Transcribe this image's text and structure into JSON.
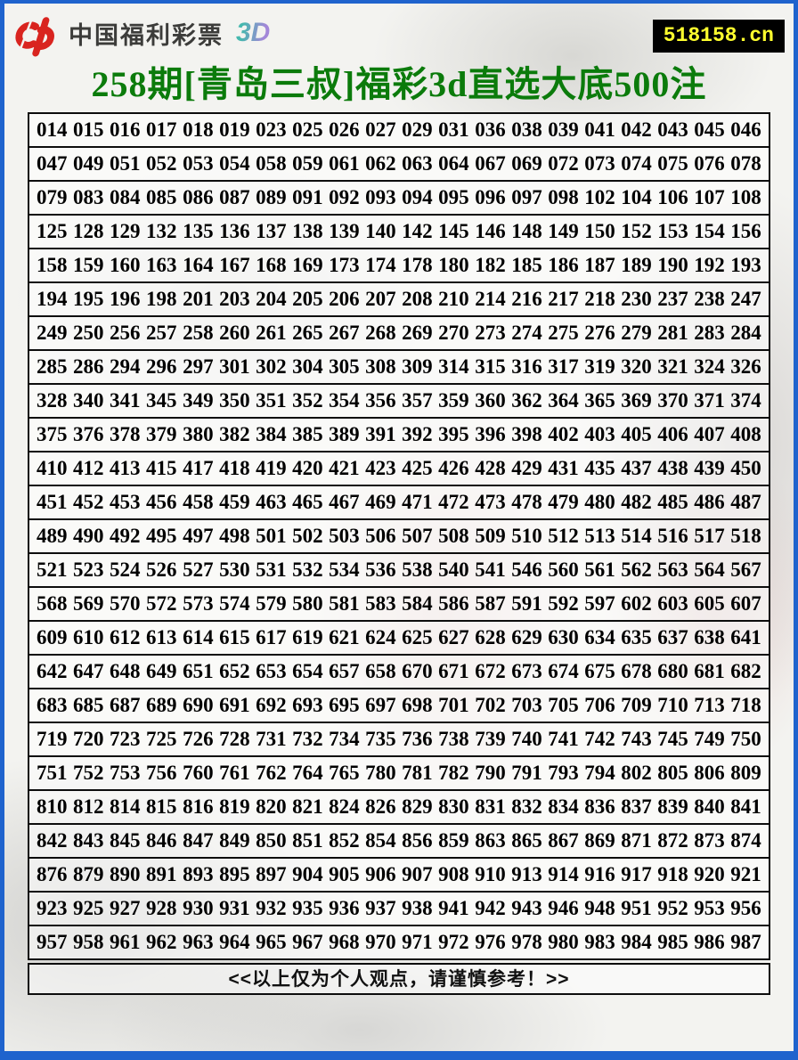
{
  "header": {
    "brand": "中国福利彩票",
    "brand_3d": "3D",
    "badge": "518158.cn"
  },
  "title": {
    "text": "258期[青岛三叔]福彩3d直选大底500注"
  },
  "colors": {
    "frame_blue": "#1f63cd",
    "title_green": "#0b7b0b",
    "badge_bg": "#000000",
    "badge_text": "#ffff2e",
    "logo_red": "#d9241f"
  },
  "table": {
    "rows": [
      [
        "014",
        "015",
        "016",
        "017",
        "018",
        "019",
        "023",
        "025",
        "026",
        "027",
        "029",
        "031",
        "036",
        "038",
        "039",
        "041",
        "042",
        "043",
        "045",
        "046"
      ],
      [
        "047",
        "049",
        "051",
        "052",
        "053",
        "054",
        "058",
        "059",
        "061",
        "062",
        "063",
        "064",
        "067",
        "069",
        "072",
        "073",
        "074",
        "075",
        "076",
        "078"
      ],
      [
        "079",
        "083",
        "084",
        "085",
        "086",
        "087",
        "089",
        "091",
        "092",
        "093",
        "094",
        "095",
        "096",
        "097",
        "098",
        "102",
        "104",
        "106",
        "107",
        "108"
      ],
      [
        "125",
        "128",
        "129",
        "132",
        "135",
        "136",
        "137",
        "138",
        "139",
        "140",
        "142",
        "145",
        "146",
        "148",
        "149",
        "150",
        "152",
        "153",
        "154",
        "156"
      ],
      [
        "158",
        "159",
        "160",
        "163",
        "164",
        "167",
        "168",
        "169",
        "173",
        "174",
        "178",
        "180",
        "182",
        "185",
        "186",
        "187",
        "189",
        "190",
        "192",
        "193"
      ],
      [
        "194",
        "195",
        "196",
        "198",
        "201",
        "203",
        "204",
        "205",
        "206",
        "207",
        "208",
        "210",
        "214",
        "216",
        "217",
        "218",
        "230",
        "237",
        "238",
        "247"
      ],
      [
        "249",
        "250",
        "256",
        "257",
        "258",
        "260",
        "261",
        "265",
        "267",
        "268",
        "269",
        "270",
        "273",
        "274",
        "275",
        "276",
        "279",
        "281",
        "283",
        "284"
      ],
      [
        "285",
        "286",
        "294",
        "296",
        "297",
        "301",
        "302",
        "304",
        "305",
        "308",
        "309",
        "314",
        "315",
        "316",
        "317",
        "319",
        "320",
        "321",
        "324",
        "326"
      ],
      [
        "328",
        "340",
        "341",
        "345",
        "349",
        "350",
        "351",
        "352",
        "354",
        "356",
        "357",
        "359",
        "360",
        "362",
        "364",
        "365",
        "369",
        "370",
        "371",
        "374"
      ],
      [
        "375",
        "376",
        "378",
        "379",
        "380",
        "382",
        "384",
        "385",
        "389",
        "391",
        "392",
        "395",
        "396",
        "398",
        "402",
        "403",
        "405",
        "406",
        "407",
        "408"
      ],
      [
        "410",
        "412",
        "413",
        "415",
        "417",
        "418",
        "419",
        "420",
        "421",
        "423",
        "425",
        "426",
        "428",
        "429",
        "431",
        "435",
        "437",
        "438",
        "439",
        "450"
      ],
      [
        "451",
        "452",
        "453",
        "456",
        "458",
        "459",
        "463",
        "465",
        "467",
        "469",
        "471",
        "472",
        "473",
        "478",
        "479",
        "480",
        "482",
        "485",
        "486",
        "487"
      ],
      [
        "489",
        "490",
        "492",
        "495",
        "497",
        "498",
        "501",
        "502",
        "503",
        "506",
        "507",
        "508",
        "509",
        "510",
        "512",
        "513",
        "514",
        "516",
        "517",
        "518"
      ],
      [
        "521",
        "523",
        "524",
        "526",
        "527",
        "530",
        "531",
        "532",
        "534",
        "536",
        "538",
        "540",
        "541",
        "546",
        "560",
        "561",
        "562",
        "563",
        "564",
        "567"
      ],
      [
        "568",
        "569",
        "570",
        "572",
        "573",
        "574",
        "579",
        "580",
        "581",
        "583",
        "584",
        "586",
        "587",
        "591",
        "592",
        "597",
        "602",
        "603",
        "605",
        "607"
      ],
      [
        "609",
        "610",
        "612",
        "613",
        "614",
        "615",
        "617",
        "619",
        "621",
        "624",
        "625",
        "627",
        "628",
        "629",
        "630",
        "634",
        "635",
        "637",
        "638",
        "641"
      ],
      [
        "642",
        "647",
        "648",
        "649",
        "651",
        "652",
        "653",
        "654",
        "657",
        "658",
        "670",
        "671",
        "672",
        "673",
        "674",
        "675",
        "678",
        "680",
        "681",
        "682"
      ],
      [
        "683",
        "685",
        "687",
        "689",
        "690",
        "691",
        "692",
        "693",
        "695",
        "697",
        "698",
        "701",
        "702",
        "703",
        "705",
        "706",
        "709",
        "710",
        "713",
        "718"
      ],
      [
        "719",
        "720",
        "723",
        "725",
        "726",
        "728",
        "731",
        "732",
        "734",
        "735",
        "736",
        "738",
        "739",
        "740",
        "741",
        "742",
        "743",
        "745",
        "749",
        "750"
      ],
      [
        "751",
        "752",
        "753",
        "756",
        "760",
        "761",
        "762",
        "764",
        "765",
        "780",
        "781",
        "782",
        "790",
        "791",
        "793",
        "794",
        "802",
        "805",
        "806",
        "809"
      ],
      [
        "810",
        "812",
        "814",
        "815",
        "816",
        "819",
        "820",
        "821",
        "824",
        "826",
        "829",
        "830",
        "831",
        "832",
        "834",
        "836",
        "837",
        "839",
        "840",
        "841"
      ],
      [
        "842",
        "843",
        "845",
        "846",
        "847",
        "849",
        "850",
        "851",
        "852",
        "854",
        "856",
        "859",
        "863",
        "865",
        "867",
        "869",
        "871",
        "872",
        "873",
        "874"
      ],
      [
        "876",
        "879",
        "890",
        "891",
        "893",
        "895",
        "897",
        "904",
        "905",
        "906",
        "907",
        "908",
        "910",
        "913",
        "914",
        "916",
        "917",
        "918",
        "920",
        "921"
      ],
      [
        "923",
        "925",
        "927",
        "928",
        "930",
        "931",
        "932",
        "935",
        "936",
        "937",
        "938",
        "941",
        "942",
        "943",
        "946",
        "948",
        "951",
        "952",
        "953",
        "956"
      ],
      [
        "957",
        "958",
        "961",
        "962",
        "963",
        "964",
        "965",
        "967",
        "968",
        "970",
        "971",
        "972",
        "976",
        "978",
        "980",
        "983",
        "984",
        "985",
        "986",
        "987"
      ]
    ]
  },
  "footer": {
    "text": "<<以上仅为个人观点，请谨慎参考！>>"
  }
}
